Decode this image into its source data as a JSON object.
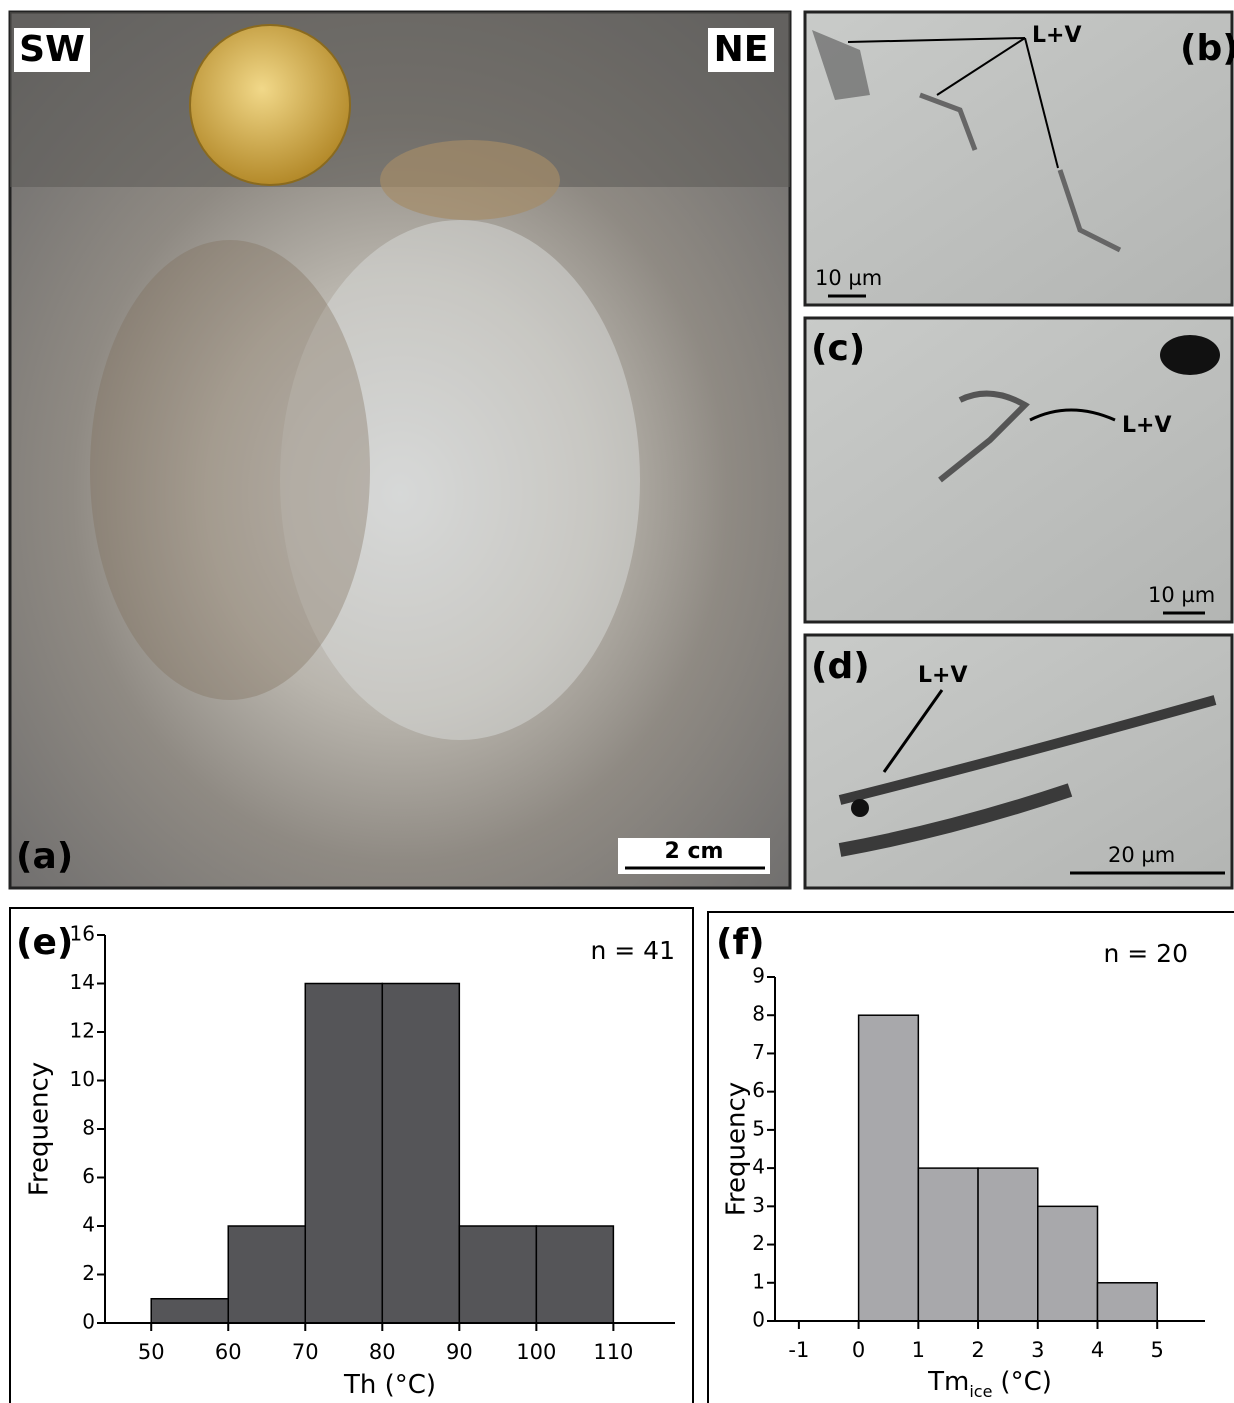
{
  "photos": [
    {
      "label": "(a)",
      "annotations": [
        "SW",
        "NE"
      ],
      "scale_bar": "2 cm"
    },
    {
      "label": "(b)",
      "annotations": [
        "L+V"
      ],
      "scale_bar": "10 µm"
    },
    {
      "label": "(c)",
      "annotations": [
        "L+V"
      ],
      "scale_bar": "10 µm"
    },
    {
      "label": "(d)",
      "annotations": [
        "L+V"
      ],
      "scale_bar": "20 µm"
    }
  ],
  "chart_data": [
    {
      "type": "histogram",
      "panel": "(e)",
      "annotation": "n = 41",
      "xlabel": "Th (°C)",
      "ylabel": "Frequency",
      "bins": [
        50,
        60,
        70,
        80,
        90,
        100,
        110
      ],
      "values": [
        1,
        4,
        14,
        14,
        4,
        4
      ],
      "color": "#555558",
      "xlim": [
        44,
        118
      ],
      "xticks": [
        50,
        60,
        70,
        80,
        90,
        100,
        110
      ],
      "ylim": [
        0,
        16
      ],
      "yticks": [
        0,
        2,
        4,
        6,
        8,
        10,
        12,
        14,
        16
      ]
    },
    {
      "type": "histogram",
      "panel": "(f)",
      "annotation": "n = 20",
      "xlabel": "Tm",
      "xlabel_sub": "ice",
      "xlabel_unit": "(°C)",
      "ylabel": "Frequency",
      "bins": [
        0,
        1,
        2,
        3,
        4,
        5
      ],
      "values": [
        8,
        4,
        4,
        3,
        1
      ],
      "color": "#a8a8ab",
      "xlim": [
        -1.4,
        5.8
      ],
      "xticks": [
        -1,
        0,
        1,
        2,
        3,
        4,
        5
      ],
      "ylim": [
        0,
        9
      ],
      "yticks": [
        0,
        1,
        2,
        3,
        4,
        5,
        6,
        7,
        8,
        9
      ]
    }
  ]
}
